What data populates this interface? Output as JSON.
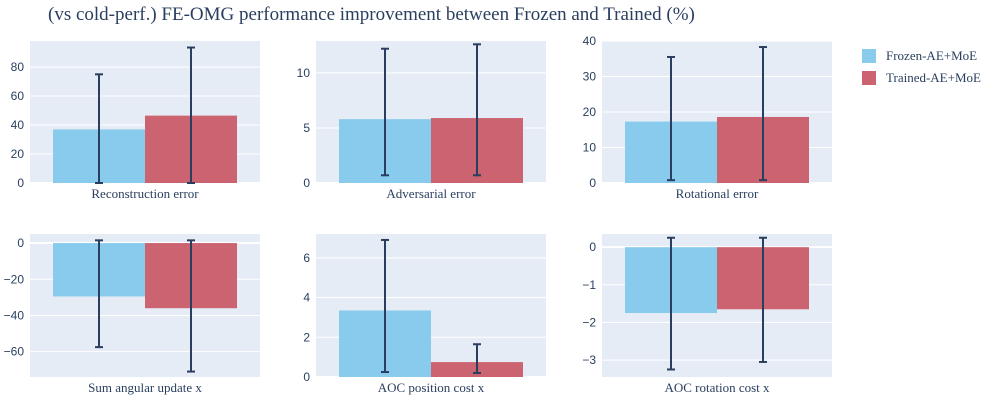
{
  "title": "(vs cold-perf.) FE-OMG performance improvement between Frozen and Trained (%)",
  "colors": {
    "plot_bg": "#e5ecf6",
    "grid": "#ffffff",
    "error_bar": "#2a3f5f"
  },
  "legend": [
    {
      "name": "Frozen-AE+MoE",
      "color": "#89cbec"
    },
    {
      "name": "Trained-AE+MoE",
      "color": "#cc6370"
    }
  ],
  "chart_data": [
    {
      "type": "bar",
      "xlabel": "Reconstruction error",
      "ylim": [
        0,
        98
      ],
      "yticks": [
        0,
        20,
        40,
        60,
        80
      ],
      "series": [
        {
          "name": "Frozen-AE+MoE",
          "value": 37,
          "err_low": 0,
          "err_high": 75
        },
        {
          "name": "Trained-AE+MoE",
          "value": 46.5,
          "err_low": 0,
          "err_high": 93.5
        }
      ]
    },
    {
      "type": "bar",
      "xlabel": "Adversarial error",
      "ylim": [
        0,
        12.9
      ],
      "yticks": [
        0,
        5,
        10
      ],
      "series": [
        {
          "name": "Frozen-AE+MoE",
          "value": 5.8,
          "err_low": 0.7,
          "err_high": 12.2
        },
        {
          "name": "Trained-AE+MoE",
          "value": 5.9,
          "err_low": 0.7,
          "err_high": 12.6
        }
      ]
    },
    {
      "type": "bar",
      "xlabel": "Rotational error",
      "ylim": [
        0,
        40
      ],
      "yticks": [
        0,
        10,
        20,
        30,
        40
      ],
      "series": [
        {
          "name": "Frozen-AE+MoE",
          "value": 17.3,
          "err_low": 0.8,
          "err_high": 35.5
        },
        {
          "name": "Trained-AE+MoE",
          "value": 18.6,
          "err_low": 0.8,
          "err_high": 38.3
        }
      ]
    },
    {
      "type": "bar",
      "xlabel": "Sum angular update x",
      "ylim": [
        -74,
        5
      ],
      "yticks": [
        0,
        -20,
        -40,
        -60
      ],
      "series": [
        {
          "name": "Frozen-AE+MoE",
          "value": -29.5,
          "err_low": -57.5,
          "err_high": 1.5
        },
        {
          "name": "Trained-AE+MoE",
          "value": -36,
          "err_low": -71,
          "err_high": 1.5
        }
      ]
    },
    {
      "type": "bar",
      "xlabel": "AOC position cost x",
      "ylim": [
        0,
        7.2
      ],
      "yticks": [
        0,
        2,
        4,
        6
      ],
      "series": [
        {
          "name": "Frozen-AE+MoE",
          "value": 3.35,
          "err_low": 0.25,
          "err_high": 6.9
        },
        {
          "name": "Trained-AE+MoE",
          "value": 0.75,
          "err_low": 0.2,
          "err_high": 1.65
        }
      ]
    },
    {
      "type": "bar",
      "xlabel": "AOC rotation cost x",
      "ylim": [
        -3.45,
        0.35
      ],
      "yticks": [
        0,
        -1,
        -2,
        -3
      ],
      "series": [
        {
          "name": "Frozen-AE+MoE",
          "value": -1.75,
          "err_low": -3.25,
          "err_high": 0.25
        },
        {
          "name": "Trained-AE+MoE",
          "value": -1.65,
          "err_low": -3.05,
          "err_high": 0.25
        }
      ]
    }
  ]
}
